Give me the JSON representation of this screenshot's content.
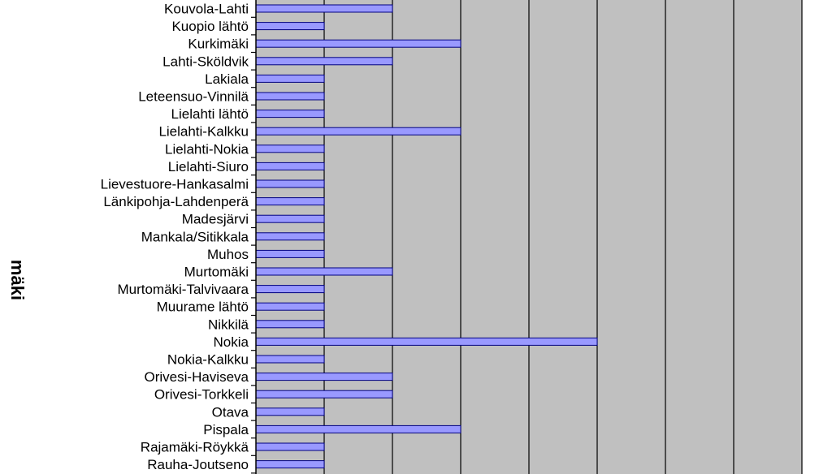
{
  "chart_data": {
    "type": "bar",
    "orientation": "horizontal",
    "ylabel": "mäki",
    "xlabel": "",
    "categories": [
      "Kouvola-Lahti",
      "Kuopio lähtö",
      "Kurkimäki",
      "Lahti-Sköldvik",
      "Lakiala",
      "Leteensuo-Vinnilä",
      "Lielahti lähtö",
      "Lielahti-Kalkku",
      "Lielahti-Nokia",
      "Lielahti-Siuro",
      "Lievestuore-Hankasalmi",
      "Länkipohja-Lahdenperä",
      "Madesjärvi",
      "Mankala/Sitikkala",
      "Muhos",
      "Murtomäki",
      "Murtomäki-Talvivaara",
      "Muurame lähtö",
      "Nikkilä",
      "Nokia",
      "Nokia-Kalkku",
      "Orivesi-Haviseva",
      "Orivesi-Torkkeli",
      "Otava",
      "Pispala",
      "Rajamäki-Röykkä",
      "Rauha-Joutseno"
    ],
    "values": [
      2,
      1,
      3,
      2,
      1,
      1,
      1,
      3,
      1,
      1,
      1,
      1,
      1,
      1,
      1,
      2,
      1,
      1,
      1,
      5,
      1,
      2,
      2,
      1,
      3,
      1,
      1
    ],
    "xlim": [
      0,
      8
    ],
    "grid": true,
    "plot_background": "#c0c0c0",
    "bar_color": "#9999ff",
    "bar_edge_color": "#000080"
  }
}
